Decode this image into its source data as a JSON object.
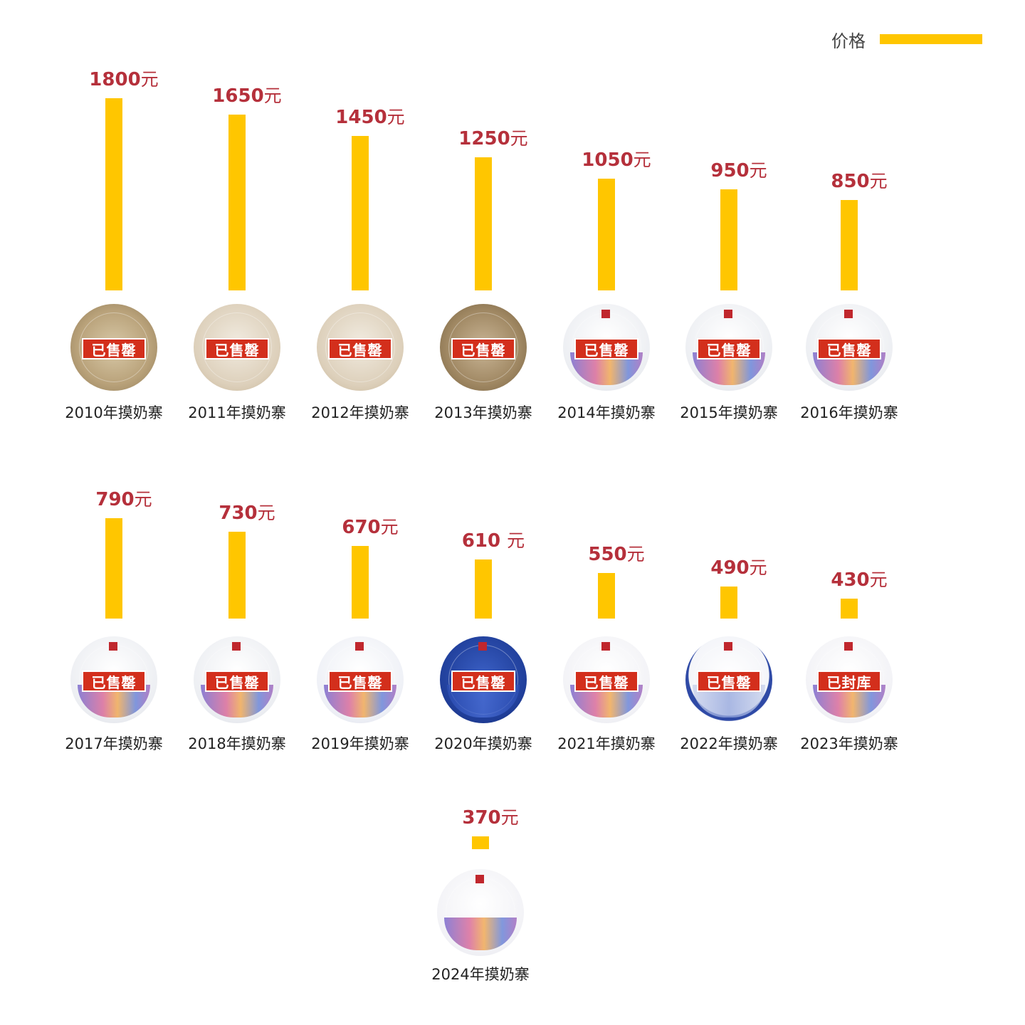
{
  "legend": {
    "label": "价格",
    "color": "#ffc600"
  },
  "colors": {
    "bar": "#ffc600",
    "price_text": "#b5303b",
    "stamp": "#d32f1c"
  },
  "chart_data": {
    "type": "bar",
    "title": "",
    "xlabel": "",
    "ylabel": "",
    "unit": "元",
    "series": [
      {
        "name": "价格",
        "values": [
          1800,
          1650,
          1450,
          1250,
          1050,
          950,
          850,
          790,
          730,
          670,
          610,
          550,
          490,
          430,
          370
        ]
      }
    ],
    "categories": [
      "2010年摸奶寨",
      "2011年摸奶寨",
      "2012年摸奶寨",
      "2013年摸奶寨",
      "2014年摸奶寨",
      "2015年摸奶寨",
      "2016年摸奶寨",
      "2017年摸奶寨",
      "2018年摸奶寨",
      "2019年摸奶寨",
      "2020年摸奶寨",
      "2021年摸奶寨",
      "2022年摸奶寨",
      "2023年摸奶寨",
      "2024年摸奶寨"
    ],
    "items": [
      {
        "label": "2010年摸奶寨",
        "price": 1800,
        "price_text": "1800",
        "unit": "元",
        "stamp": "已售罄",
        "icon": "aged-tea-cake-calligraphy"
      },
      {
        "label": "2011年摸奶寨",
        "price": 1650,
        "price_text": "1650",
        "unit": "元",
        "stamp": "已售罄",
        "icon": "aged-tea-cake"
      },
      {
        "label": "2012年摸奶寨",
        "price": 1450,
        "price_text": "1450",
        "unit": "元",
        "stamp": "已售罄",
        "icon": "aged-tea-cake"
      },
      {
        "label": "2013年摸奶寨",
        "price": 1250,
        "price_text": "1250",
        "unit": "元",
        "stamp": "已售罄",
        "icon": "aged-tea-cake-dark"
      },
      {
        "label": "2014年摸奶寨",
        "price": 1050,
        "price_text": "1050",
        "unit": "元",
        "stamp": "已售罄",
        "icon": "colorful-tea-cake"
      },
      {
        "label": "2015年摸奶寨",
        "price": 950,
        "price_text": "950",
        "unit": "元",
        "stamp": "已售罄",
        "icon": "colorful-tea-cake"
      },
      {
        "label": "2016年摸奶寨",
        "price": 850,
        "price_text": "850",
        "unit": "元",
        "stamp": "已售罄",
        "icon": "colorful-tea-cake"
      },
      {
        "label": "2017年摸奶寨",
        "price": 790,
        "price_text": "790",
        "unit": "元",
        "stamp": "已售罄",
        "icon": "colorful-tea-cake"
      },
      {
        "label": "2018年摸奶寨",
        "price": 730,
        "price_text": "730",
        "unit": "元",
        "stamp": "已售罄",
        "icon": "colorful-tea-cake"
      },
      {
        "label": "2019年摸奶寨",
        "price": 670,
        "price_text": "670",
        "unit": "元",
        "stamp": "已售罄",
        "icon": "blue-pattern-tea-cake"
      },
      {
        "label": "2020年摸奶寨",
        "price": 610,
        "price_text": "610 ",
        "unit": "元",
        "stamp": "已售罄",
        "icon": "blue-wrapper-tea-cake"
      },
      {
        "label": "2021年摸奶寨",
        "price": 550,
        "price_text": "550",
        "unit": "元",
        "stamp": "已售罄",
        "icon": "pattern-tea-cake"
      },
      {
        "label": "2022年摸奶寨",
        "price": 490,
        "price_text": "490",
        "unit": "元",
        "stamp": "已售罄",
        "icon": "blue-ring-tea-cake"
      },
      {
        "label": "2023年摸奶寨",
        "price": 430,
        "price_text": "430",
        "unit": "元",
        "stamp": "已封库",
        "icon": "pattern-tea-cake"
      },
      {
        "label": "2024年摸奶寨",
        "price": 370,
        "price_text": "370",
        "unit": "元",
        "stamp": "",
        "icon": "pattern-tea-cake"
      }
    ]
  }
}
